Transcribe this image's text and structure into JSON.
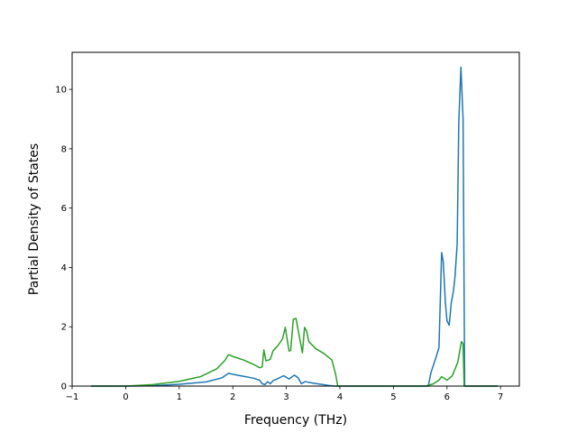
{
  "chart_data": {
    "type": "line",
    "title": "",
    "xlabel": "Frequency (THz)",
    "ylabel": "Partial Density of States",
    "xlim": [
      -1.0,
      7.35
    ],
    "ylim": [
      0,
      11.25
    ],
    "xticks": [
      -1,
      0,
      1,
      2,
      3,
      4,
      5,
      6,
      7
    ],
    "yticks": [
      0,
      2,
      4,
      6,
      8,
      10
    ],
    "xtick_labels": [
      "−1",
      "0",
      "1",
      "2",
      "3",
      "4",
      "5",
      "6",
      "7"
    ],
    "ytick_labels": [
      "0",
      "2",
      "4",
      "6",
      "8",
      "10"
    ],
    "grid": false,
    "legend": "none",
    "series": [
      {
        "color": "#1f77b4",
        "points": [
          [
            -0.65,
            0.0
          ],
          [
            0.0,
            0.0
          ],
          [
            0.5,
            0.01
          ],
          [
            1.0,
            0.06
          ],
          [
            1.5,
            0.14
          ],
          [
            1.8,
            0.28
          ],
          [
            1.92,
            0.43
          ],
          [
            2.05,
            0.38
          ],
          [
            2.2,
            0.33
          ],
          [
            2.4,
            0.26
          ],
          [
            2.5,
            0.2
          ],
          [
            2.55,
            0.08
          ],
          [
            2.6,
            0.05
          ],
          [
            2.65,
            0.15
          ],
          [
            2.7,
            0.08
          ],
          [
            2.75,
            0.18
          ],
          [
            2.85,
            0.26
          ],
          [
            2.95,
            0.35
          ],
          [
            3.05,
            0.24
          ],
          [
            3.15,
            0.37
          ],
          [
            3.22,
            0.28
          ],
          [
            3.28,
            0.08
          ],
          [
            3.35,
            0.15
          ],
          [
            3.5,
            0.1
          ],
          [
            3.8,
            0.02
          ],
          [
            3.9,
            0.0
          ],
          [
            4.5,
            0.0
          ],
          [
            5.65,
            0.0
          ],
          [
            5.7,
            0.45
          ],
          [
            5.8,
            1.0
          ],
          [
            5.85,
            1.3
          ],
          [
            5.9,
            4.5
          ],
          [
            5.93,
            4.2
          ],
          [
            5.97,
            2.8
          ],
          [
            6.0,
            2.2
          ],
          [
            6.04,
            2.05
          ],
          [
            6.08,
            2.8
          ],
          [
            6.12,
            3.2
          ],
          [
            6.15,
            3.7
          ],
          [
            6.19,
            4.8
          ],
          [
            6.22,
            8.9
          ],
          [
            6.26,
            10.75
          ],
          [
            6.3,
            9.0
          ],
          [
            6.33,
            0.0
          ],
          [
            6.95,
            0.0
          ]
        ]
      },
      {
        "color": "#2ca02c",
        "points": [
          [
            -0.65,
            0.0
          ],
          [
            0.0,
            0.0
          ],
          [
            0.5,
            0.05
          ],
          [
            1.0,
            0.16
          ],
          [
            1.4,
            0.32
          ],
          [
            1.7,
            0.58
          ],
          [
            1.85,
            0.86
          ],
          [
            1.92,
            1.06
          ],
          [
            2.0,
            1.0
          ],
          [
            2.2,
            0.88
          ],
          [
            2.4,
            0.72
          ],
          [
            2.5,
            0.62
          ],
          [
            2.55,
            0.65
          ],
          [
            2.58,
            1.22
          ],
          [
            2.62,
            0.85
          ],
          [
            2.7,
            0.9
          ],
          [
            2.75,
            1.18
          ],
          [
            2.85,
            1.38
          ],
          [
            2.93,
            1.6
          ],
          [
            2.98,
            1.98
          ],
          [
            3.05,
            1.18
          ],
          [
            3.08,
            1.2
          ],
          [
            3.13,
            2.25
          ],
          [
            3.18,
            2.28
          ],
          [
            3.25,
            1.6
          ],
          [
            3.3,
            1.12
          ],
          [
            3.34,
            1.98
          ],
          [
            3.38,
            1.85
          ],
          [
            3.42,
            1.5
          ],
          [
            3.55,
            1.26
          ],
          [
            3.7,
            1.1
          ],
          [
            3.85,
            0.88
          ],
          [
            3.92,
            0.4
          ],
          [
            3.96,
            0.0
          ],
          [
            5.6,
            0.0
          ],
          [
            5.75,
            0.08
          ],
          [
            5.85,
            0.2
          ],
          [
            5.9,
            0.32
          ],
          [
            6.0,
            0.2
          ],
          [
            6.1,
            0.35
          ],
          [
            6.2,
            0.8
          ],
          [
            6.27,
            1.5
          ],
          [
            6.3,
            1.42
          ],
          [
            6.32,
            0.0
          ],
          [
            6.95,
            0.0
          ]
        ]
      }
    ]
  }
}
